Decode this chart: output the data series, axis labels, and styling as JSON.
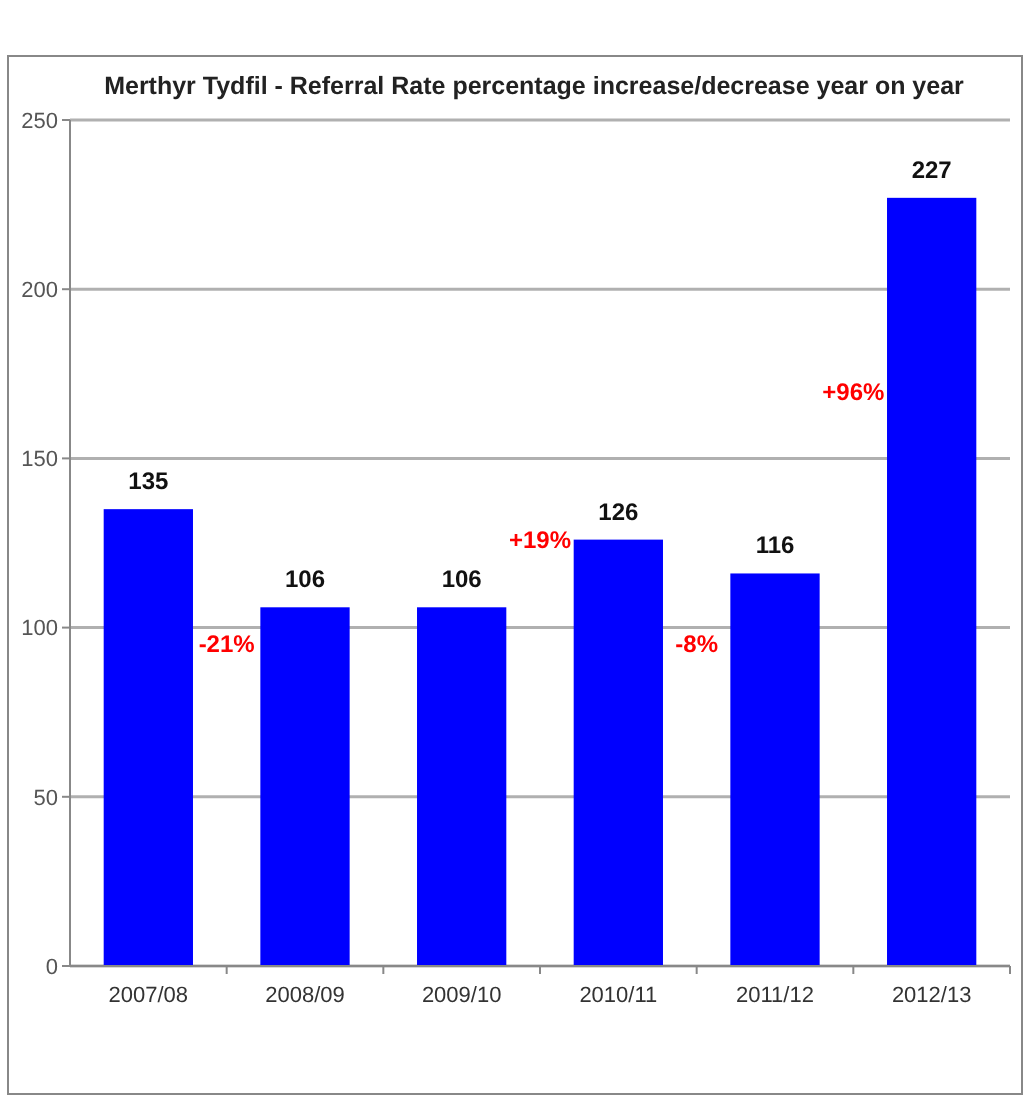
{
  "chart_data": {
    "type": "bar",
    "title": "Merthyr Tydfil - Referral Rate percentage increase/decrease year on year",
    "categories": [
      "2007/08",
      "2008/09",
      "2009/10",
      "2010/11",
      "2011/12",
      "2012/13"
    ],
    "values": [
      135,
      106,
      106,
      126,
      116,
      227
    ],
    "color": "#0000ff",
    "ylim": [
      0,
      250
    ],
    "yticks": [
      0,
      50,
      100,
      150,
      200,
      250
    ],
    "grid": "y",
    "data_labels": true,
    "annotations": [
      "-21%",
      "+19%",
      "-8%",
      "+96%"
    ]
  }
}
